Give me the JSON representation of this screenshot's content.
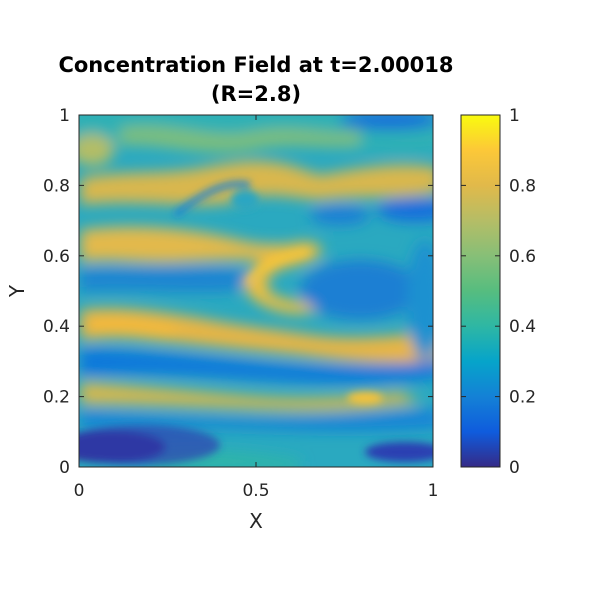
{
  "chart_data": {
    "type": "heatmap",
    "title": "Concentration Field at t=2.00018",
    "subtitle": "(R=2.8)",
    "xlabel": "X",
    "ylabel": "Y",
    "xlim": [
      0,
      1
    ],
    "ylim": [
      0,
      1
    ],
    "x_ticks": [
      "0",
      "0.5",
      "1"
    ],
    "y_ticks": [
      "0",
      "0.2",
      "0.4",
      "0.6",
      "0.8",
      "1"
    ],
    "colormap": "parula",
    "color_range": [
      0,
      1
    ],
    "colorbar_ticks": [
      "0",
      "0.2",
      "0.4",
      "0.6",
      "0.8",
      "1"
    ],
    "grid": false,
    "colorbar": "right",
    "field_description": "Layered, wavy concentration bands; darkest near bottom-left (~0.1), bright yellow-orange bands (~0.8) near y≈0.43, 0.2 and 0.85, a hooked tongue of high concentration near (0.55, 0.55)."
  }
}
